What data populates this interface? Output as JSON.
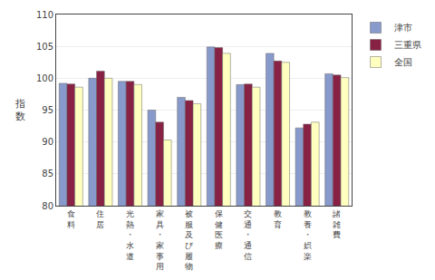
{
  "chart_data": {
    "type": "bar",
    "categories": [
      "食\n料",
      "住\n居",
      "光\n熱\n・\n水\n道",
      "家\n具\n・\n家\n事\n用",
      "被\n服\n及\nび\n履\n物",
      "保\n健\n医\n療",
      "交\n通\n・\n通\n信",
      "教\n育",
      "教\n養\n・\n娯\n楽",
      "諸\n雑\n費"
    ],
    "series": [
      {
        "name": "津市",
        "color": "#8899CC",
        "values": [
          99.2,
          100.0,
          99.5,
          95.0,
          97.0,
          104.9,
          99.0,
          103.9,
          92.2,
          100.7
        ]
      },
      {
        "name": "三重県",
        "color": "#882244",
        "values": [
          99.1,
          101.1,
          99.5,
          93.1,
          96.5,
          104.8,
          99.1,
          102.7,
          92.8,
          100.5
        ]
      },
      {
        "name": "全国",
        "color": "#FFFFC0",
        "values": [
          98.6,
          100.0,
          99.0,
          90.3,
          96.0,
          103.9,
          98.6,
          102.5,
          93.1,
          100.1
        ]
      }
    ],
    "ylabel": "指\n数",
    "ylim": [
      80,
      110
    ],
    "yticks": [
      80,
      85,
      90,
      95,
      100,
      105,
      110
    ],
    "grid": true,
    "legend": "upper right"
  }
}
